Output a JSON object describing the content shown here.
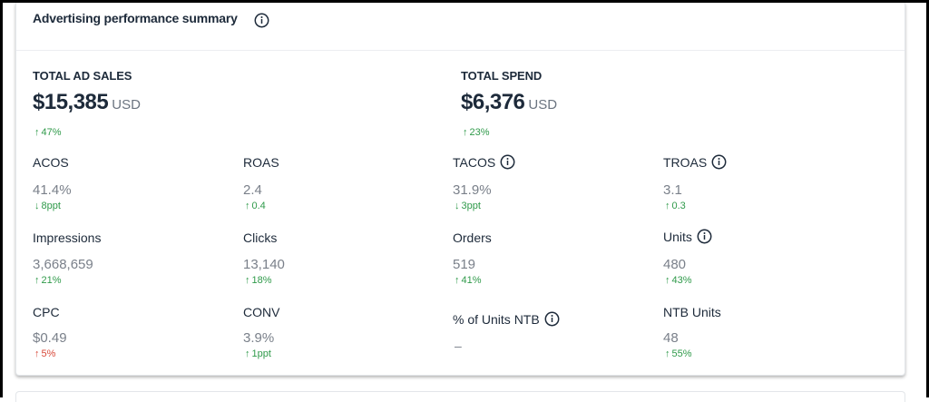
{
  "card": {
    "title": "Advertising performance summary",
    "title_info_icon": "info-icon"
  },
  "totals": {
    "sales": {
      "label": "TOTAL AD SALES",
      "value": "$15,385",
      "unit": "USD",
      "delta_arrow": "↑",
      "delta": "47%"
    },
    "spend": {
      "label": "TOTAL SPEND",
      "value": "$6,376",
      "unit": "USD",
      "delta_arrow": "↑",
      "delta": "23%"
    }
  },
  "metrics": {
    "acos": {
      "label": "ACOS",
      "value": "41.4%",
      "delta_arrow": "↓",
      "delta": "8ppt"
    },
    "roas": {
      "label": "ROAS",
      "value": "2.4",
      "delta_arrow": "↑",
      "delta": "0.4"
    },
    "tacos": {
      "label": "TACOS",
      "value": "31.9%",
      "delta_arrow": "↓",
      "delta": "3ppt",
      "info": true
    },
    "troas": {
      "label": "TROAS",
      "value": "3.1",
      "delta_arrow": "↑",
      "delta": "0.3",
      "info": true
    },
    "impressions": {
      "label": "Impressions",
      "value": "3,668,659",
      "delta_arrow": "↑",
      "delta": "21%"
    },
    "clicks": {
      "label": "Clicks",
      "value": "13,140",
      "delta_arrow": "↑",
      "delta": "18%"
    },
    "orders": {
      "label": "Orders",
      "value": "519",
      "delta_arrow": "↑",
      "delta": "41%"
    },
    "units": {
      "label": "Units",
      "value": "480",
      "delta_arrow": "↑",
      "delta": "43%",
      "info": true
    },
    "cpc": {
      "label": "CPC",
      "value": "$0.49",
      "delta_arrow": "↑",
      "delta": "5%"
    },
    "conv": {
      "label": "CONV",
      "value": "3.9%",
      "delta_arrow": "↑",
      "delta": "1ppt"
    },
    "pct_units_ntb": {
      "label": "% of Units NTB",
      "value": "–",
      "info": true
    },
    "ntb_units": {
      "label": "NTB Units",
      "value": "48",
      "delta_arrow": "↑",
      "delta": "55%"
    }
  },
  "colors": {
    "text": "#1d2a3a",
    "muted_value": "#7a808a",
    "positive": "#2f9a4a",
    "negative": "#d84a3a"
  }
}
